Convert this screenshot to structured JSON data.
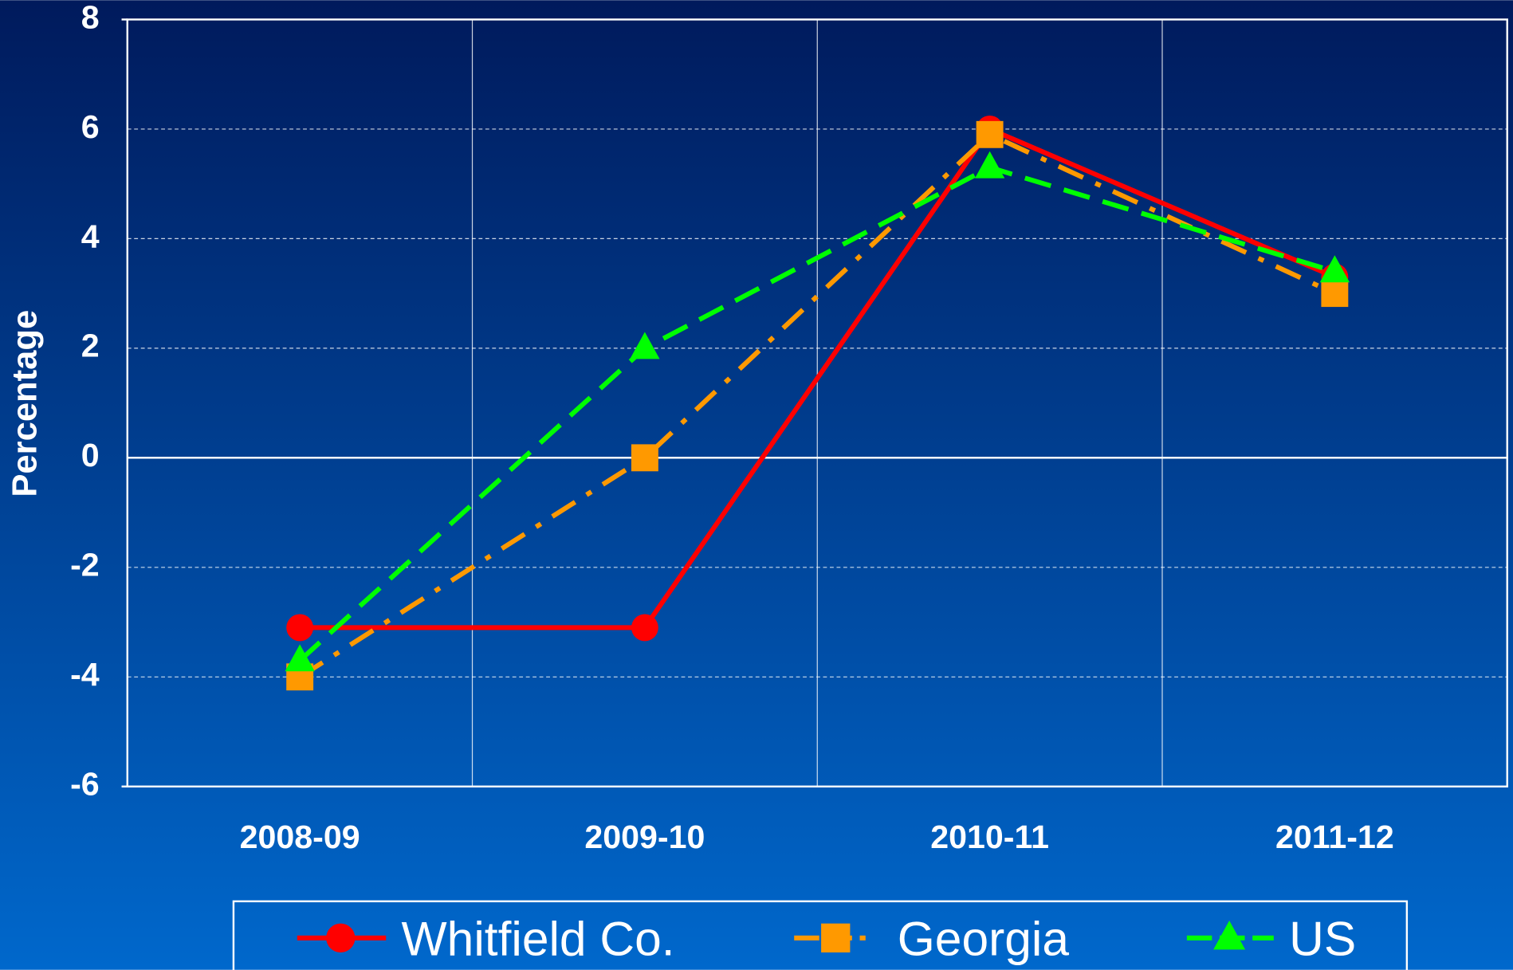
{
  "chart_data": {
    "type": "line",
    "ylabel": "Percentage",
    "categories": [
      "2008-09",
      "2009-10",
      "2010-11",
      "2011-12"
    ],
    "series": [
      {
        "name": "Whitfield Co.",
        "color": "#ff0000",
        "marker": "circle",
        "line_style": "solid",
        "values": [
          -3.1,
          -3.1,
          6.0,
          3.3
        ]
      },
      {
        "name": "Georgia",
        "color": "#ff9900",
        "marker": "square",
        "line_style": "dashdot",
        "values": [
          -4.0,
          0.0,
          5.9,
          3.0
        ]
      },
      {
        "name": "US",
        "color": "#00ff00",
        "marker": "triangle",
        "line_style": "dashed",
        "values": [
          -3.7,
          2.0,
          5.3,
          3.4
        ]
      }
    ],
    "ylim": [
      -6,
      8
    ],
    "yticks": [
      -6,
      -4,
      -2,
      0,
      2,
      4,
      6,
      8
    ],
    "grid": true,
    "legend": "bottom"
  }
}
